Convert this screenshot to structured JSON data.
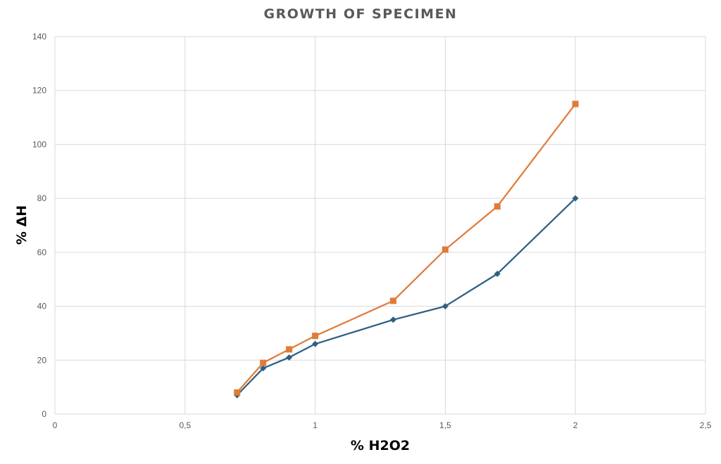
{
  "chart_data": {
    "type": "line",
    "title": "GROWTH OF SPECIMEN",
    "xlabel": "% H2O2",
    "ylabel": "% ΔH",
    "xlim": [
      0,
      2.5
    ],
    "ylim": [
      0,
      140
    ],
    "x_ticks": [
      "0",
      "0,5",
      "1",
      "1,5",
      "2",
      "2,5"
    ],
    "y_ticks": [
      "0",
      "20",
      "40",
      "60",
      "80",
      "100",
      "120",
      "140"
    ],
    "grid": true,
    "legend": "none",
    "series": [
      {
        "color": "#2e5f82",
        "marker": "diamond",
        "x": [
          0.7,
          0.8,
          0.9,
          1.0,
          1.3,
          1.5,
          1.7,
          2.0
        ],
        "y": [
          7,
          17,
          21,
          26,
          35,
          40,
          52,
          80
        ]
      },
      {
        "color": "#e07b39",
        "marker": "square",
        "x": [
          0.7,
          0.8,
          0.9,
          1.0,
          1.3,
          1.5,
          1.7,
          2.0
        ],
        "y": [
          8,
          19,
          24,
          29,
          42,
          61,
          77,
          115
        ]
      }
    ]
  }
}
